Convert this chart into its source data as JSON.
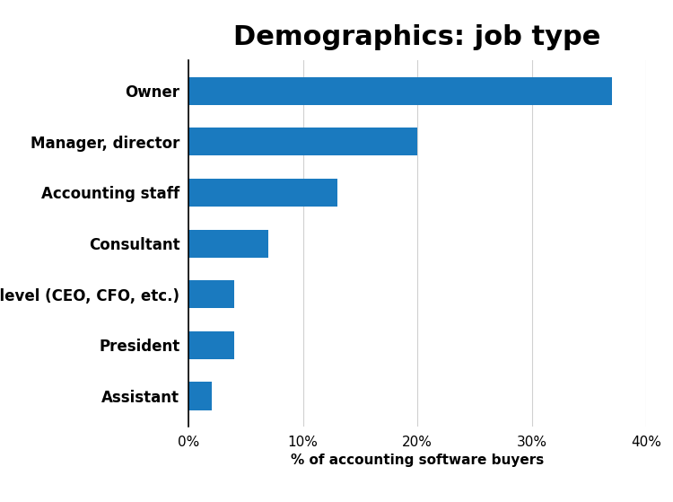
{
  "title": "Demographics: job type",
  "categories": [
    "Owner",
    "Manager, director",
    "Accounting staff",
    "Consultant",
    "C-level (CEO, CFO, etc.)",
    "President",
    "Assistant"
  ],
  "values": [
    37,
    20,
    13,
    7,
    4,
    4,
    2
  ],
  "bar_color": "#1a7abf",
  "xlabel": "% of accounting software buyers",
  "xlim": [
    0,
    40
  ],
  "xtick_values": [
    0,
    10,
    20,
    30,
    40
  ],
  "background_color": "#ffffff",
  "title_fontsize": 22,
  "label_fontsize": 12,
  "tick_fontsize": 11,
  "xlabel_fontsize": 11
}
